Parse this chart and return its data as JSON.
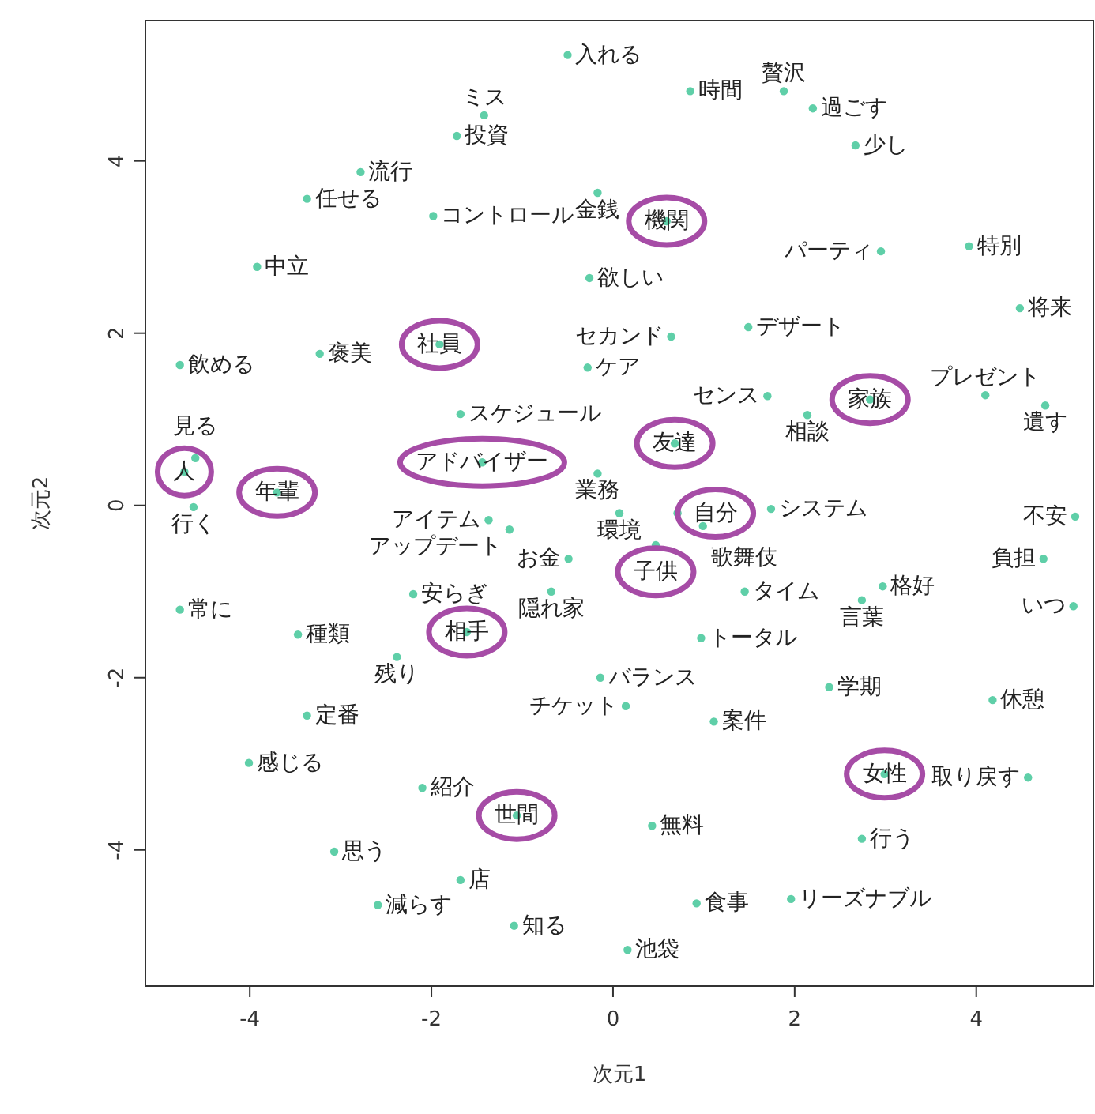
{
  "chart_data": {
    "type": "scatter",
    "xlabel": "次元1",
    "ylabel": "次元2",
    "xlim": [
      -5.15,
      5.29
    ],
    "ylim": [
      -5.58,
      5.63
    ],
    "xticks": [
      -4,
      -2,
      0,
      2,
      4
    ],
    "yticks": [
      -4,
      -2,
      0,
      2,
      4
    ],
    "grid": false,
    "marker": "circle",
    "series": [
      {
        "color": "#5fcfa8",
        "x": [
          -1.72,
          -2.78,
          -3.37,
          -1.98,
          -3.92,
          -3.23,
          -4.77,
          -1.68,
          -4.6,
          -4.62,
          -2.2,
          -4.77,
          -3.47,
          -2.38,
          -3.37,
          -4.01,
          -2.1,
          -3.07,
          -1.68,
          -2.59,
          -0.5,
          0.85,
          1.88,
          2.2,
          -1.42,
          -0.17,
          -0.26,
          0.64,
          1.49,
          -0.28,
          1.7,
          -0.17,
          0.07,
          0.99,
          1.74,
          -1.37,
          -1.14,
          -0.49,
          -0.68,
          1.45,
          0.97,
          -0.14,
          0.14,
          1.11,
          0.43,
          0.92,
          -1.09,
          0.16,
          2.67,
          2.95,
          3.92,
          4.48,
          4.1,
          2.14,
          4.76,
          5.09,
          4.74,
          2.97,
          2.74,
          5.07,
          2.38,
          4.18,
          4.57,
          2.74,
          1.96
        ],
        "values": [
          4.29,
          3.87,
          3.56,
          3.36,
          2.77,
          1.76,
          1.63,
          1.06,
          0.55,
          -0.02,
          -1.03,
          -1.21,
          -1.5,
          -1.76,
          -2.44,
          -2.99,
          -3.28,
          -4.02,
          -4.35,
          -4.64,
          5.23,
          4.81,
          4.81,
          4.61,
          4.53,
          3.63,
          2.64,
          1.96,
          2.07,
          1.6,
          1.27,
          0.37,
          -0.09,
          -0.24,
          -0.04,
          -0.17,
          -0.28,
          -0.62,
          -1.0,
          -1.0,
          -1.54,
          -2.0,
          -2.33,
          -2.51,
          -3.72,
          -4.62,
          -4.88,
          -5.16,
          4.18,
          2.95,
          3.01,
          2.29,
          1.28,
          1.05,
          1.16,
          -0.13,
          -0.62,
          -0.94,
          -1.1,
          -1.17,
          -2.11,
          -2.26,
          -3.16,
          -3.87,
          -4.57
        ],
        "value_labels": [
          "投資",
          "流行",
          "任せる",
          "コントロール",
          "中立",
          "褒美",
          "飲める",
          "スケジュール",
          "見る",
          "行く",
          "安らぎ",
          "常に",
          "種類",
          "残り",
          "定番",
          "感じる",
          "紹介",
          "思う",
          "店",
          "減らす",
          "入れる",
          "時間",
          "贅沢",
          "過ごす",
          "ミス",
          "金銭",
          "欲しい",
          "セカンド",
          "デザート",
          "ケア",
          "センス",
          "業務",
          "環境",
          "歌舞伎",
          "システム",
          "アイテム",
          "アップデート",
          "お金",
          "隠れ家",
          "タイム",
          "トータル",
          "バランス",
          "チケット",
          "案件",
          "無料",
          "食事",
          "知る",
          "池袋",
          "少し",
          "パーティ",
          "特別",
          "将来",
          "プレゼント",
          "相談",
          "遺す",
          "不安",
          "負担",
          "格好",
          "言葉",
          "いつ",
          "学期",
          "休憩",
          "取り戻す",
          "行う",
          "リーズナブル"
        ]
      },
      {
        "color": "#5fcfa8",
        "x": [
          0.59,
          -1.91,
          2.83,
          -4.72,
          -3.7,
          -1.44,
          0.68,
          0.71,
          0.47,
          -1.61,
          2.99,
          -1.06
        ],
        "values": [
          3.3,
          1.87,
          1.23,
          0.39,
          0.15,
          0.5,
          0.72,
          -0.09,
          -0.46,
          -1.47,
          -3.12,
          -3.6
        ],
        "value_labels": [
          "機関",
          "社員",
          "家族",
          "人",
          "年輩",
          "アドバイザー",
          "友達",
          "自分",
          "子供",
          "相手",
          "女性",
          "世間"
        ]
      }
    ]
  }
}
